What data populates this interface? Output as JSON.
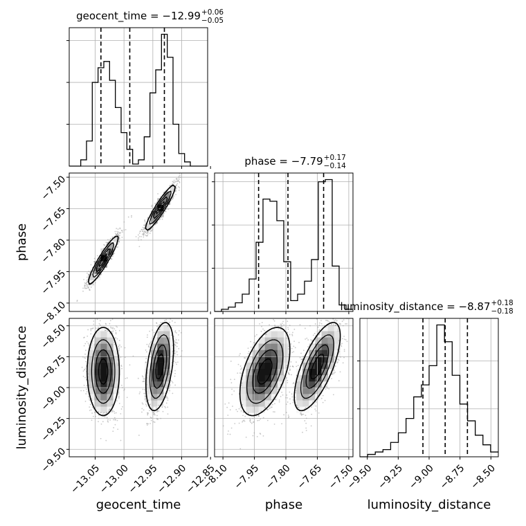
{
  "chart_data": {
    "type": "corner",
    "parameters": [
      "geocent_time",
      "phase",
      "luminosity_distance"
    ],
    "grid": true,
    "histograms": [
      {
        "name": "geocent_time",
        "title_param": "geocent_time",
        "title_value": "−12.99",
        "title_plus": "+0.06",
        "title_minus": "−0.05",
        "range": [
          -13.095,
          -12.855
        ],
        "quantiles": [
          -13.04,
          -12.99,
          -12.93
        ],
        "ticks": [
          -13.05,
          -13.0,
          -12.95,
          -12.9,
          -12.85
        ],
        "tick_labels": [
          "−13.05",
          "−13.00",
          "−12.95",
          "−12.90",
          "−12.85"
        ],
        "counts": [
          0,
          0,
          3,
          12,
          40,
          47,
          50,
          41,
          28,
          16,
          8,
          1,
          3,
          14,
          35,
          46,
          63,
          52,
          20,
          6,
          2,
          0,
          0,
          0
        ]
      },
      {
        "name": "phase",
        "title_param": "phase",
        "title_value": "−7.79",
        "title_plus": "+0.17",
        "title_minus": "−0.14",
        "range": [
          -8.14,
          -7.48
        ],
        "quantiles": [
          -7.93,
          -7.79,
          -7.62
        ],
        "ticks": [
          -8.1,
          -7.95,
          -7.8,
          -7.65,
          -7.5
        ],
        "tick_labels": [
          "−8.10",
          "−7.95",
          "−7.80",
          "−7.65",
          "−7.50"
        ],
        "counts": [
          0,
          1,
          2,
          4,
          8,
          15,
          32,
          52,
          51,
          42,
          23,
          5,
          8,
          14,
          24,
          60,
          61,
          21,
          3,
          1
        ]
      },
      {
        "name": "luminosity_distance",
        "title_param": "luminosity_distance",
        "title_value": "−8.87",
        "title_plus": "+0.18",
        "title_minus": "−0.18",
        "range": [
          -9.56,
          -8.44
        ],
        "quantiles": [
          -9.05,
          -8.87,
          -8.69
        ],
        "ticks": [
          -9.5,
          -9.25,
          -9.0,
          -8.75,
          -8.5
        ],
        "tick_labels": [
          "−9.50",
          "−9.25",
          "−9.00",
          "−8.75",
          "−8.50"
        ],
        "counts": [
          0,
          1,
          2,
          3,
          6,
          10,
          16,
          25,
          30,
          38,
          55,
          48,
          34,
          22,
          15,
          9,
          5,
          2
        ]
      }
    ],
    "scatter_2d": [
      {
        "x_param": "geocent_time",
        "y_param": "phase",
        "clusters": [
          {
            "mean": [
              -13.036,
              -7.895
            ],
            "sd": [
              0.013,
              0.058
            ],
            "corr": 0.93,
            "weight": 0.5
          },
          {
            "mean": [
              -12.937,
              -7.645
            ],
            "sd": [
              0.013,
              0.055
            ],
            "corr": 0.93,
            "weight": 0.5
          }
        ]
      },
      {
        "x_param": "geocent_time",
        "y_param": "luminosity_distance",
        "clusters": [
          {
            "mean": [
              -13.036,
              -8.87
            ],
            "sd": [
              0.014,
              0.18
            ],
            "corr": 0.0,
            "weight": 0.5
          },
          {
            "mean": [
              -12.938,
              -8.83
            ],
            "sd": [
              0.012,
              0.18
            ],
            "corr": 0.42,
            "weight": 0.5
          }
        ]
      },
      {
        "x_param": "phase",
        "y_param": "luminosity_distance",
        "clusters": [
          {
            "mean": [
              -7.9,
              -8.87
            ],
            "sd": [
              0.06,
              0.18
            ],
            "corr": 0.5,
            "weight": 0.5
          },
          {
            "mean": [
              -7.65,
              -8.83
            ],
            "sd": [
              0.055,
              0.18
            ],
            "corr": 0.7,
            "weight": 0.5
          }
        ]
      }
    ],
    "ylabel_rows": [
      "phase",
      "luminosity_distance"
    ],
    "xlabel_cols": [
      "geocent_time",
      "phase",
      "luminosity_distance"
    ]
  },
  "style": {
    "line_color": "#000000",
    "grid_color": "#b0b0b0",
    "point_color": "#9a9a9a"
  }
}
